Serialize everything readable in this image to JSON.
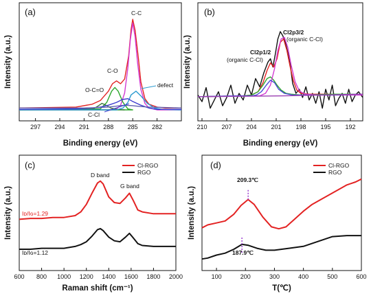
{
  "chart_data": [
    {
      "type": "line",
      "panel_label": "(a)",
      "xlabel": "Binding energy (eV)",
      "ylabel": "Intensity (a.u.)",
      "x_reversed": true,
      "xlim": [
        299,
        279
      ],
      "ylim": [
        0,
        1
      ],
      "xticks": [
        297,
        294,
        291,
        288,
        285,
        282
      ],
      "annotations": [
        "C-C",
        "C-O",
        "O-C=O",
        "defect",
        "C-Cl"
      ],
      "series": [
        {
          "color": "#e32222",
          "x": [
            299,
            292,
            290,
            289,
            288,
            287.5,
            287,
            286.5,
            286,
            285.5,
            285.2,
            285,
            284.7,
            284.3,
            284,
            283.5,
            283,
            282,
            281,
            279
          ],
          "y": [
            0.02,
            0.03,
            0.06,
            0.1,
            0.2,
            0.28,
            0.31,
            0.28,
            0.33,
            0.58,
            0.86,
            0.97,
            0.85,
            0.55,
            0.3,
            0.12,
            0.06,
            0.03,
            0.02,
            0.02
          ]
        },
        {
          "color": "#d23ad2",
          "x": [
            299,
            288,
            287,
            286.5,
            286,
            285.6,
            285.3,
            285,
            284.7,
            284.4,
            284,
            283.5,
            283,
            282,
            279
          ],
          "y": [
            0,
            0,
            0.01,
            0.05,
            0.18,
            0.45,
            0.75,
            0.93,
            0.78,
            0.5,
            0.22,
            0.07,
            0.02,
            0,
            0
          ]
        },
        {
          "color": "#2da82d",
          "x": [
            299,
            289,
            288.2,
            287.6,
            287.2,
            286.8,
            286.2,
            285.6,
            285,
            299
          ],
          "y": [
            0,
            0.01,
            0.08,
            0.2,
            0.24,
            0.2,
            0.08,
            0.01,
            0,
            0
          ]
        },
        {
          "color": "#3c7a3c",
          "x": [
            299,
            290,
            289.3,
            288.8,
            288.3,
            287.7,
            287,
            286
          ],
          "y": [
            0,
            0.005,
            0.04,
            0.07,
            0.05,
            0.02,
            0.005,
            0
          ]
        },
        {
          "color": "#2a9ad0",
          "x": [
            299,
            287,
            286.2,
            285.6,
            285.2,
            284.6,
            284,
            283.2,
            282.3,
            281.4,
            279
          ],
          "y": [
            0,
            0,
            0.02,
            0.08,
            0.16,
            0.2,
            0.15,
            0.07,
            0.02,
            0.005,
            0
          ]
        },
        {
          "color": "#3b3bcf",
          "x": [
            299,
            292,
            290,
            289,
            288,
            287,
            286.3,
            285.6,
            285,
            284,
            283,
            282,
            279
          ],
          "y": [
            0.005,
            0.01,
            0.02,
            0.03,
            0.05,
            0.08,
            0.11,
            0.12,
            0.09,
            0.05,
            0.02,
            0.005,
            0.005
          ]
        },
        {
          "color": "#6060b0",
          "x": [
            299,
            291,
            289,
            288,
            287,
            286,
            285,
            284,
            283,
            281,
            279
          ],
          "y": [
            0.02,
            0.02,
            0.025,
            0.03,
            0.04,
            0.05,
            0.045,
            0.035,
            0.03,
            0.025,
            0.02
          ]
        }
      ]
    },
    {
      "type": "line",
      "panel_label": "(b)",
      "xlabel": "Binding energy (eV)",
      "ylabel": "Intensity (a.u.)",
      "x_reversed": true,
      "xlim": [
        210.5,
        190.5
      ],
      "ylim": [
        0,
        1
      ],
      "xticks": [
        210,
        207,
        204,
        201,
        198,
        195,
        192
      ],
      "annotations": [
        "Cl2p3/2",
        "(organic C-Cl)",
        "Cl2p1/2",
        "(organic C-Cl)"
      ],
      "series": [
        {
          "color": "#111111",
          "x": [
            210.5,
            210,
            209.5,
            209,
            208.5,
            208,
            207.5,
            207,
            206.5,
            206,
            205.5,
            205,
            204.5,
            204,
            203.5,
            203,
            202.5,
            202,
            201.7,
            201.4,
            201.1,
            200.8,
            200.5,
            200.2,
            199.9,
            199.6,
            199.3,
            199,
            198.6,
            198.2,
            197.8,
            197.4,
            197,
            196.6,
            196.2,
            195.8,
            195.4,
            195,
            194.6,
            194.2,
            193.8,
            193.4,
            193,
            192.6,
            192.2,
            191.8,
            191.4,
            191,
            190.5
          ],
          "y": [
            0.18,
            0.1,
            0.27,
            0.02,
            0.12,
            0.22,
            0.05,
            0.15,
            0.3,
            0.08,
            0.2,
            0.12,
            0.3,
            0.18,
            0.38,
            0.28,
            0.45,
            0.58,
            0.62,
            0.52,
            0.68,
            0.86,
            0.95,
            0.9,
            0.82,
            0.7,
            0.55,
            0.32,
            0.2,
            0.25,
            0.15,
            0.28,
            0.12,
            0.2,
            0.08,
            0.22,
            0.02,
            0.25,
            0.12,
            0.3,
            0.05,
            0.14,
            0.2,
            0.08,
            0.25,
            0.1,
            0.18,
            0.22,
            0.15
          ]
        },
        {
          "color": "#e32222",
          "x": [
            210.5,
            205,
            204,
            203.2,
            202.6,
            202.1,
            201.7,
            201.3,
            200.9,
            200.5,
            200.1,
            199.7,
            199.3,
            198.9,
            198.5,
            198,
            197,
            194,
            190.5
          ],
          "y": [
            0.16,
            0.17,
            0.18,
            0.22,
            0.33,
            0.48,
            0.57,
            0.52,
            0.62,
            0.82,
            0.86,
            0.72,
            0.52,
            0.35,
            0.24,
            0.2,
            0.19,
            0.19,
            0.19
          ]
        },
        {
          "color": "#2da82d",
          "x": [
            210.5,
            205,
            204,
            203.2,
            202.6,
            202.1,
            201.7,
            201.3,
            200.9,
            200.4,
            199.8,
            199.2,
            198,
            194,
            190.5
          ],
          "y": [
            0.16,
            0.17,
            0.18,
            0.22,
            0.3,
            0.38,
            0.4,
            0.36,
            0.3,
            0.24,
            0.2,
            0.19,
            0.18,
            0.19,
            0.19
          ]
        },
        {
          "color": "#d23ad2",
          "x": [
            210.5,
            203,
            202.3,
            201.7,
            201.2,
            200.8,
            200.4,
            200,
            199.6,
            199.2,
            198.7,
            198.2,
            197.5,
            196,
            190.5
          ],
          "y": [
            0.16,
            0.17,
            0.2,
            0.3,
            0.5,
            0.72,
            0.86,
            0.88,
            0.76,
            0.55,
            0.34,
            0.23,
            0.19,
            0.18,
            0.18
          ]
        },
        {
          "color": "#4a4ad6",
          "x": [
            210.5,
            206,
            204,
            203.4,
            202.8,
            202.2,
            201.7,
            201.2,
            200.7,
            200,
            199,
            197,
            194,
            190.5
          ],
          "y": [
            0.16,
            0.17,
            0.17,
            0.18,
            0.22,
            0.3,
            0.36,
            0.33,
            0.25,
            0.2,
            0.18,
            0.18,
            0.18,
            0.19
          ]
        },
        {
          "color": "#9a3fb2",
          "x": [
            210.5,
            200,
            190.5
          ],
          "y": [
            0.16,
            0.17,
            0.19
          ]
        }
      ]
    },
    {
      "type": "line",
      "panel_label": "(c)",
      "xlabel": "Raman shift (cm⁻¹)",
      "ylabel": "Intensity (a.u.)",
      "xlim": [
        600,
        2000
      ],
      "ylim": [
        0,
        1
      ],
      "xticks": [
        600,
        800,
        1000,
        1200,
        1400,
        1600,
        1800,
        2000
      ],
      "annotations": [
        "D band",
        "G band",
        "Iᴅ/Iɢ=1.29",
        "Iᴅ/Iɢ=1.12"
      ],
      "legend": {
        "position": "top-right",
        "entries": [
          "Cl-RGO",
          "RGO"
        ]
      },
      "series": [
        {
          "name": "Cl-RGO",
          "color": "#e32222",
          "x": [
            600,
            700,
            800,
            900,
            1000,
            1100,
            1150,
            1200,
            1250,
            1300,
            1325,
            1350,
            1400,
            1450,
            1500,
            1550,
            1585,
            1620,
            1660,
            1700,
            1800,
            1900,
            2000
          ],
          "y": [
            0.46,
            0.47,
            0.47,
            0.48,
            0.48,
            0.5,
            0.54,
            0.62,
            0.74,
            0.85,
            0.87,
            0.84,
            0.7,
            0.64,
            0.63,
            0.69,
            0.74,
            0.66,
            0.56,
            0.54,
            0.52,
            0.52,
            0.52
          ]
        },
        {
          "name": "RGO",
          "color": "#111111",
          "x": [
            600,
            700,
            800,
            900,
            1000,
            1100,
            1150,
            1200,
            1250,
            1300,
            1325,
            1350,
            1400,
            1450,
            1500,
            1550,
            1585,
            1620,
            1660,
            1700,
            1800,
            1900,
            2000
          ],
          "y": [
            0.14,
            0.14,
            0.15,
            0.15,
            0.15,
            0.17,
            0.19,
            0.22,
            0.28,
            0.35,
            0.36,
            0.34,
            0.27,
            0.23,
            0.22,
            0.27,
            0.31,
            0.26,
            0.2,
            0.18,
            0.17,
            0.17,
            0.17
          ]
        }
      ]
    },
    {
      "type": "line",
      "panel_label": "(d)",
      "xlabel": "T(℃)",
      "ylabel": "Intensity (a.u.)",
      "xlim": [
        50,
        600
      ],
      "ylim": [
        0,
        1
      ],
      "xticks": [
        100,
        200,
        300,
        400,
        500,
        600
      ],
      "annotations": [
        "209.3℃",
        "187.9℃"
      ],
      "legend": {
        "position": "top-right",
        "entries": [
          "Cl-RGO",
          "RGO"
        ]
      },
      "series": [
        {
          "name": "Cl-RGO",
          "color": "#e32222",
          "x": [
            50,
            70,
            100,
            130,
            160,
            185,
            209,
            230,
            260,
            290,
            315,
            340,
            370,
            400,
            430,
            460,
            490,
            520,
            550,
            580,
            600
          ],
          "y": [
            0.41,
            0.44,
            0.46,
            0.48,
            0.55,
            0.64,
            0.7,
            0.65,
            0.52,
            0.42,
            0.4,
            0.42,
            0.5,
            0.58,
            0.65,
            0.7,
            0.75,
            0.8,
            0.85,
            0.88,
            0.91
          ]
        },
        {
          "name": "RGO",
          "color": "#111111",
          "x": [
            50,
            70,
            100,
            130,
            160,
            188,
            210,
            240,
            270,
            300,
            350,
            400,
            450,
            500,
            550,
            600
          ],
          "y": [
            0.09,
            0.1,
            0.13,
            0.15,
            0.19,
            0.24,
            0.23,
            0.2,
            0.18,
            0.18,
            0.2,
            0.22,
            0.27,
            0.32,
            0.33,
            0.33
          ]
        }
      ],
      "markers": [
        {
          "x": 209.3,
          "color": "#9b3fd0"
        },
        {
          "x": 187.9,
          "color": "#9b3fd0"
        }
      ]
    }
  ]
}
